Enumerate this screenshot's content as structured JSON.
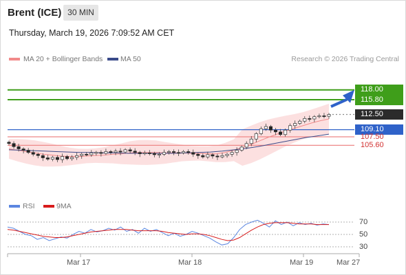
{
  "header": {
    "instrument": "Brent (ICE)",
    "timeframe": "30 MIN",
    "timestamp": "Thursday, March 19, 2026 7:09:52 AM CET"
  },
  "legend": {
    "ma20": "MA 20 + Bollinger Bands",
    "ma50": "MA 50",
    "credit": "Research © 2026 Trading Central",
    "rsi": "RSI",
    "rsi_ma": "9MA"
  },
  "colors": {
    "green": "#3f9e1a",
    "blue": "#2f62c9",
    "red": "#d23030",
    "ma20": "#f28a8a",
    "ma50": "#3a4a8a",
    "band": "#fbd6d6",
    "candle": "#222222",
    "rsi": "#5b86e0",
    "rsi_ma": "#d81b1b"
  },
  "levels": [
    {
      "label": "118.00",
      "value": 118.0,
      "style": "green"
    },
    {
      "label": "115.80",
      "value": 115.8,
      "style": "green"
    },
    {
      "label": "112.50",
      "value": 112.5,
      "style": "dark"
    },
    {
      "label": "109.10",
      "value": 109.1,
      "style": "blue"
    },
    {
      "label": "107.50",
      "value": 107.5,
      "style": "red"
    },
    {
      "label": "105.60",
      "value": 105.6,
      "style": "red"
    }
  ],
  "x_axis": {
    "labels": [
      "Mar 17",
      "Mar 18",
      "Mar 19",
      "Mar 27"
    ]
  },
  "rsi_axis": {
    "labels": [
      "70",
      "50",
      "30"
    ],
    "values": [
      70,
      50,
      30
    ]
  },
  "chart_data": {
    "type": "candlestick",
    "series": [
      {
        "name": "Brent (ICE)",
        "close": [
          106.0,
          105.3,
          104.8,
          104.5,
          104.0,
          103.6,
          103.3,
          102.8,
          102.5,
          102.9,
          102.4,
          103.1,
          102.6,
          102.9,
          103.3,
          103.6,
          103.5,
          103.9,
          104.0,
          103.8,
          104.2,
          104.0,
          104.3,
          104.1,
          104.6,
          104.3,
          104.0,
          103.7,
          103.9,
          103.8,
          103.5,
          103.6,
          104.0,
          104.2,
          104.0,
          103.9,
          104.2,
          104.0,
          103.6,
          103.3,
          103.0,
          103.5,
          103.2,
          103.0,
          103.3,
          103.6,
          104.0,
          104.5,
          105.2,
          106.0,
          107.0,
          108.2,
          109.3,
          109.8,
          109.0,
          108.6,
          108.0,
          109.0,
          110.0,
          110.5,
          111.0,
          111.6,
          111.5,
          112.0,
          112.2,
          112.1,
          112.5
        ]
      },
      {
        "name": "MA 20",
        "values": [
          104.8,
          104.5,
          104.2,
          103.9,
          103.6,
          103.4,
          103.2,
          103.1,
          103.1,
          103.2,
          103.3,
          103.4,
          103.6,
          103.7,
          103.9,
          104.0,
          104.0,
          104.0,
          103.9,
          103.9,
          103.9,
          103.8,
          103.8,
          103.7,
          103.7,
          104.0,
          104.5,
          105.1,
          105.8,
          106.6,
          107.4,
          108.1,
          108.8,
          109.4,
          110.0,
          110.6,
          111.1,
          111.5
        ]
      },
      {
        "name": "MA 50",
        "values": [
          104.6,
          104.5,
          104.4,
          104.3,
          104.2,
          104.1,
          104.0,
          104.0,
          103.9,
          103.9,
          103.8,
          103.8,
          103.8,
          103.8,
          103.8,
          103.9,
          104.0,
          104.1,
          104.3,
          104.6,
          104.9,
          105.3,
          105.8,
          106.3,
          106.8,
          107.3,
          107.7,
          108.1
        ]
      },
      {
        "name": "RSI",
        "values": [
          62,
          60,
          55,
          50,
          48,
          42,
          45,
          40,
          43,
          46,
          44,
          50,
          55,
          52,
          58,
          54,
          56,
          60,
          57,
          62,
          55,
          58,
          52,
          60,
          55,
          58,
          53,
          48,
          52,
          47,
          50,
          55,
          52,
          48,
          44,
          38,
          33,
          35,
          45,
          58,
          66,
          70,
          73,
          68,
          62,
          72,
          66,
          70,
          64,
          69,
          66,
          68,
          65,
          67,
          66
        ]
      },
      {
        "name": "9MA",
        "values": [
          58,
          57,
          55,
          53,
          51,
          49,
          47,
          46,
          45,
          45,
          46,
          48,
          50,
          52,
          54,
          55,
          56,
          57,
          58,
          58,
          58,
          57,
          56,
          56,
          56,
          56,
          55,
          53,
          52,
          51,
          50,
          51,
          51,
          50,
          48,
          45,
          42,
          40,
          41,
          45,
          51,
          57,
          62,
          66,
          68,
          69,
          69,
          69,
          68,
          67,
          67,
          67,
          66,
          66,
          66
        ]
      }
    ],
    "annotations": [
      "Projection arrow toward 118.00"
    ],
    "legend_position": "top-left"
  }
}
